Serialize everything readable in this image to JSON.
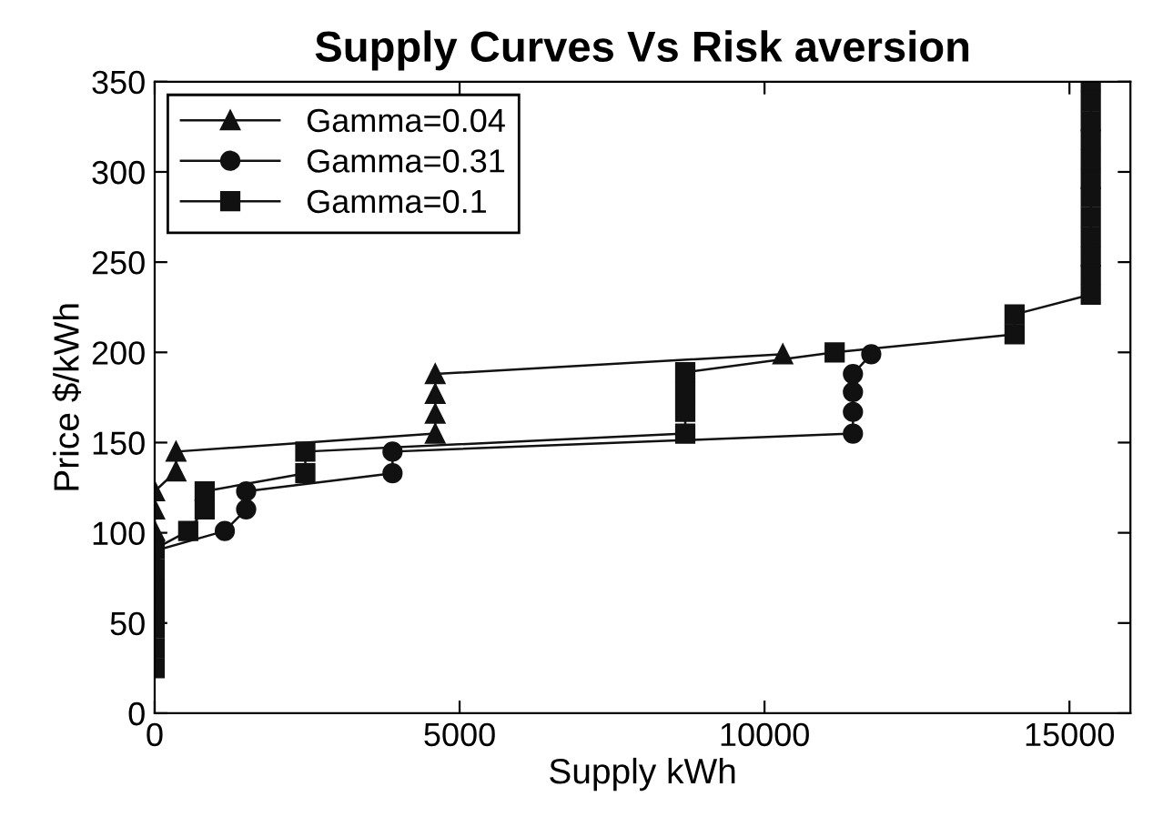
{
  "chart_data": {
    "type": "line",
    "title": "Supply Curves Vs Risk aversion",
    "xlabel": "Supply kWh",
    "ylabel": "Price $/kWh",
    "xlim": [
      0,
      16000
    ],
    "xticks": [
      0,
      5000,
      10000,
      15000
    ],
    "ylim": [
      0,
      350
    ],
    "yticks": [
      0,
      50,
      100,
      150,
      200,
      250,
      300,
      350
    ],
    "grid": false,
    "legend": "top left",
    "line_style": "solid",
    "series": [
      {
        "name": "Gamma=0.04",
        "color": "#111111",
        "marker": "triangle",
        "x": [
          0,
          0,
          0,
          350,
          350,
          4600,
          4600,
          4600,
          4600,
          10300
        ],
        "values": [
          101,
          113,
          123,
          134,
          145,
          155,
          166,
          177,
          188,
          199
        ]
      },
      {
        "name": "Gamma=0.31",
        "color": "#111111",
        "marker": "circle",
        "x": [
          0,
          1150,
          1500,
          1500,
          3900,
          3900,
          11450,
          11450,
          11450,
          11450,
          11750
        ],
        "values": [
          90,
          101,
          113,
          123,
          133,
          145,
          155,
          167,
          178,
          188,
          199
        ]
      },
      {
        "name": "Gamma=0.1",
        "color": "#111111",
        "marker": "square",
        "x": [
          0,
          0,
          0,
          0,
          0,
          0,
          0,
          550,
          820,
          820,
          2470,
          2470,
          8700,
          8700,
          8700,
          8700,
          11150,
          14100,
          14100,
          15350,
          15350,
          15350,
          15350,
          15350,
          15350,
          15350,
          15350,
          15350,
          15350,
          15350,
          15350
        ],
        "values": [
          25,
          36,
          47,
          58,
          69,
          80,
          91,
          101,
          113,
          123,
          133,
          145,
          155,
          167,
          178,
          189,
          200,
          210,
          221,
          232,
          243,
          253,
          264,
          275,
          286,
          296,
          307,
          318,
          328,
          339,
          350
        ]
      }
    ]
  }
}
